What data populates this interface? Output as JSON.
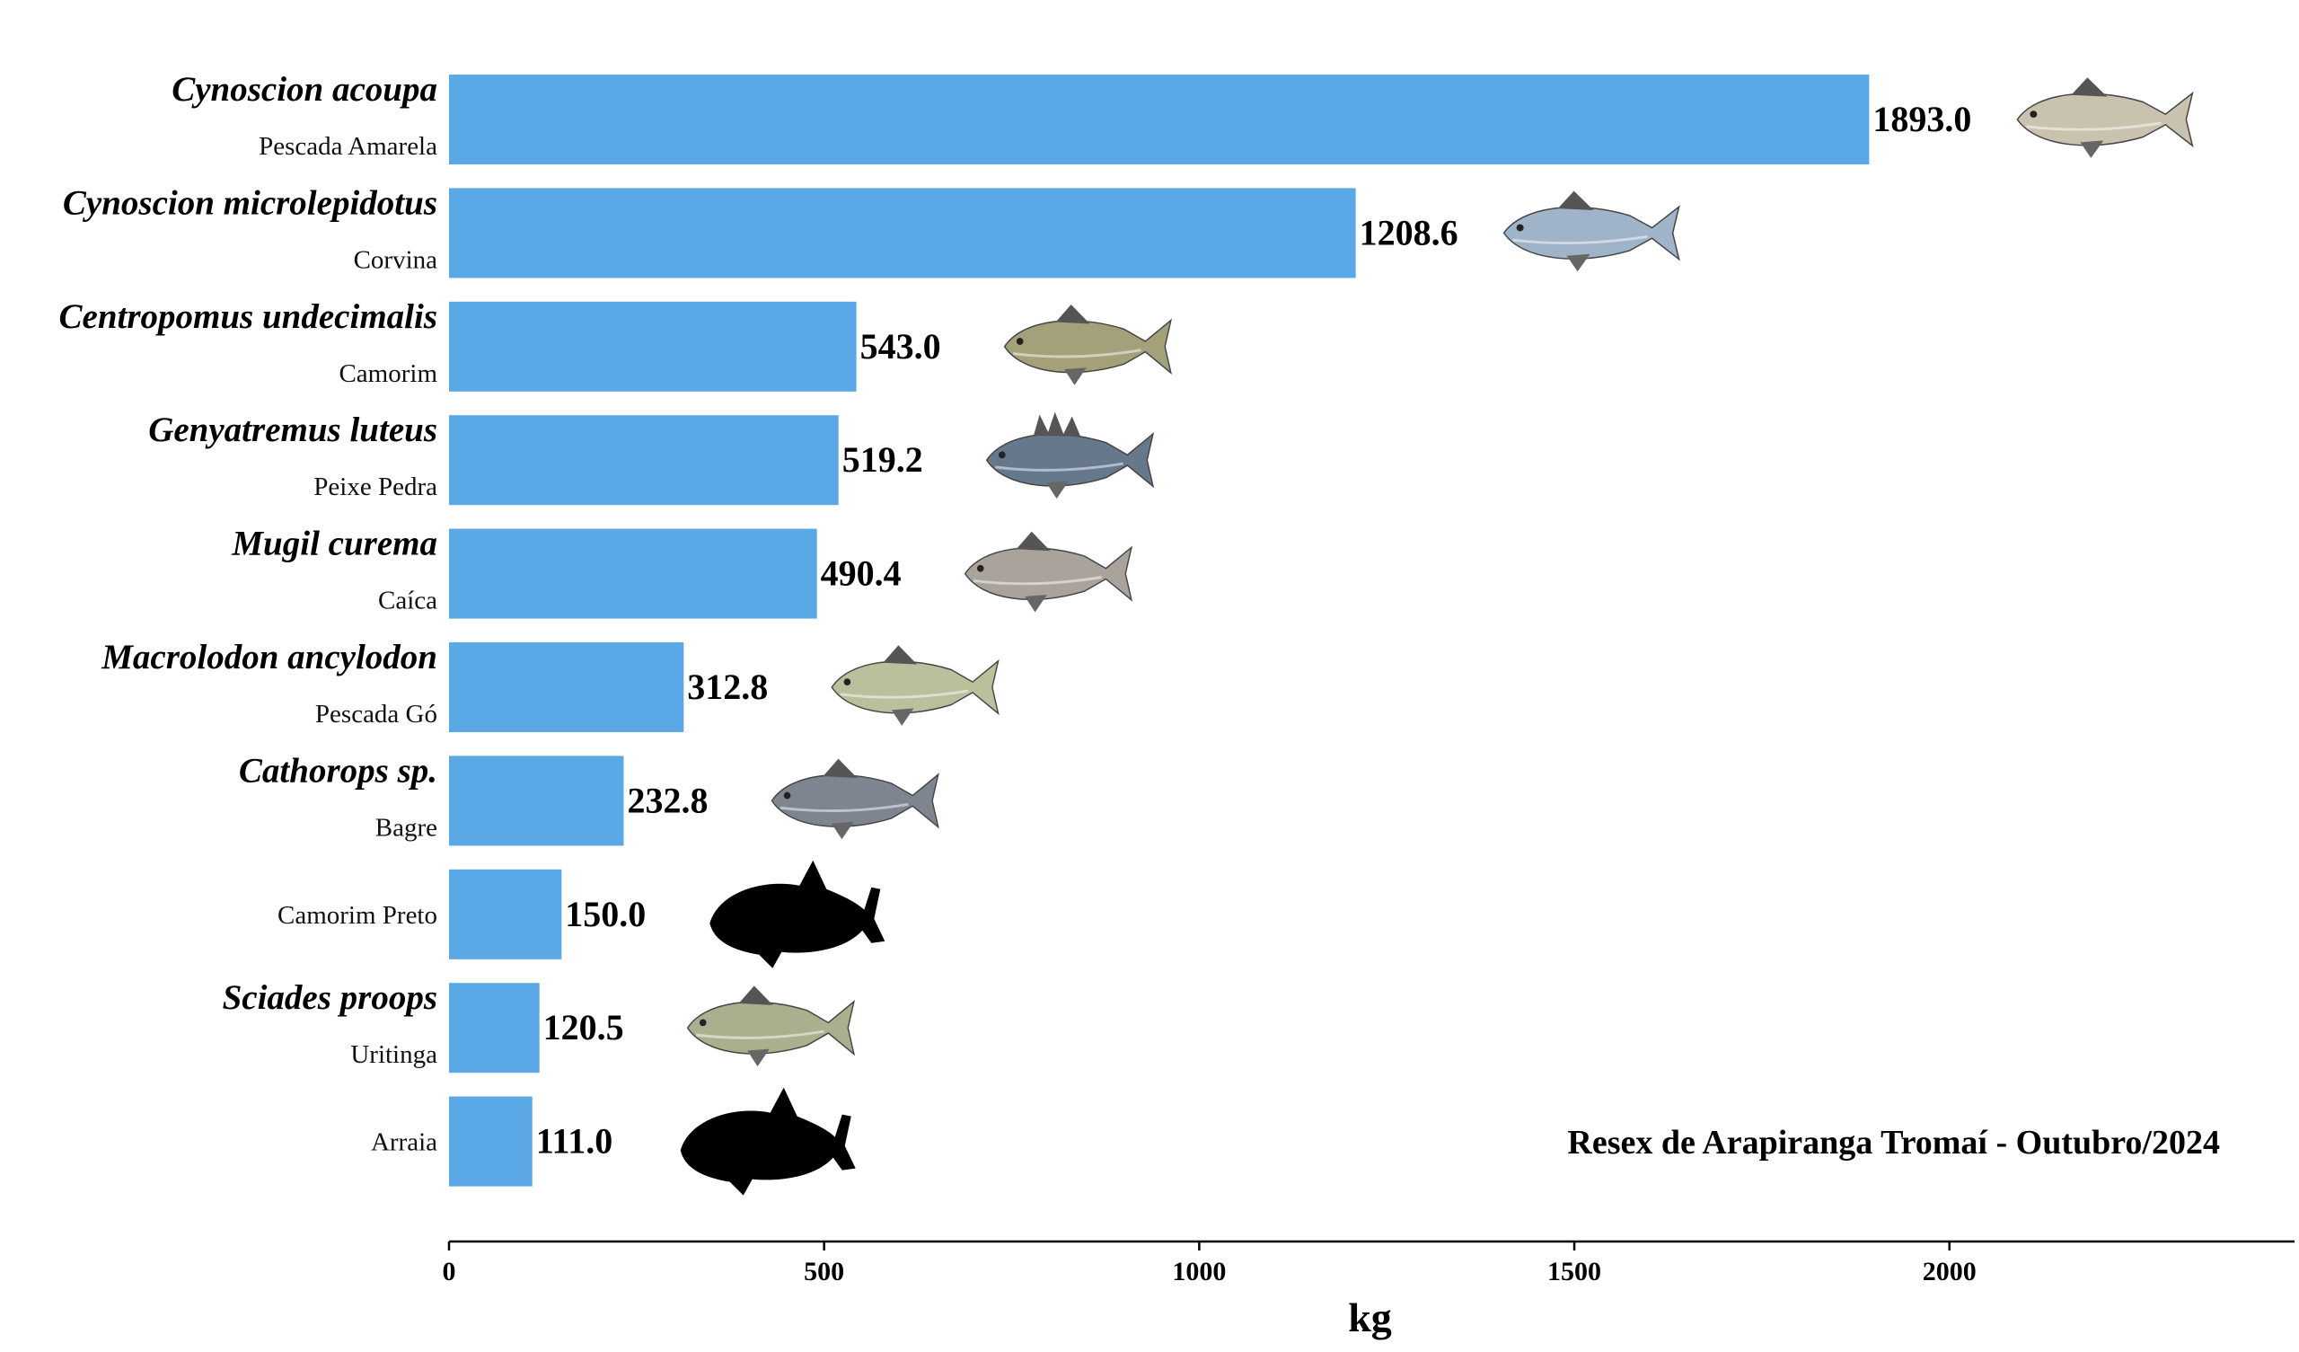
{
  "chart_data": {
    "type": "bar",
    "orientation": "horizontal",
    "bar_color": "#5aa8e6",
    "xlabel": "kg",
    "xlim": [
      0,
      2460
    ],
    "xticks": [
      0,
      500,
      1000,
      1500,
      2000
    ],
    "annotation": "Resex de Arapiranga Tromaí - Outubro/2024",
    "grid": false,
    "categories": [
      {
        "scientific": "Cynoscion acoupa",
        "common": "Pescada Amarela",
        "value": 1893.0,
        "value_label": "1893.0",
        "icon": "yellow-hake-fish-icon",
        "icon_color": "#c9c2ae"
      },
      {
        "scientific": "Cynoscion microlepidotus",
        "common": "Corvina",
        "value": 1208.6,
        "value_label": "1208.6",
        "icon": "corvina-fish-icon",
        "icon_color": "#9fb4c8"
      },
      {
        "scientific": "Centropomus undecimalis",
        "common": "Camorim",
        "value": 543.0,
        "value_label": "543.0",
        "icon": "snook-fish-icon",
        "icon_color": "#a3a07a"
      },
      {
        "scientific": "Genyatremus luteus",
        "common": "Peixe Pedra",
        "value": 519.2,
        "value_label": "519.2",
        "icon": "stone-fish-icon",
        "icon_color": "#66788c"
      },
      {
        "scientific": "Mugil curema",
        "common": "Caíca",
        "value": 490.4,
        "value_label": "490.4",
        "icon": "mullet-fish-icon",
        "icon_color": "#a9a39c"
      },
      {
        "scientific": "Macrolodon ancylodon",
        "common": "Pescada Gó",
        "value": 312.8,
        "value_label": "312.8",
        "icon": "weakfish-fish-icon",
        "icon_color": "#bcbf9c"
      },
      {
        "scientific": "Cathorops sp.",
        "common": "Bagre",
        "value": 232.8,
        "value_label": "232.8",
        "icon": "catfish-icon",
        "icon_color": "#7f8590"
      },
      {
        "scientific": "",
        "common": "Camorim Preto",
        "value": 150.0,
        "value_label": "150.0",
        "icon": "fish-silhouette-icon",
        "icon_color": "#000000"
      },
      {
        "scientific": "Sciades proops",
        "common": "Uritinga",
        "value": 120.5,
        "value_label": "120.5",
        "icon": "uritinga-catfish-icon",
        "icon_color": "#a8b08e"
      },
      {
        "scientific": "",
        "common": "Arraia",
        "value": 111.0,
        "value_label": "111.0",
        "icon": "fish-silhouette-icon",
        "icon_color": "#000000"
      }
    ]
  }
}
